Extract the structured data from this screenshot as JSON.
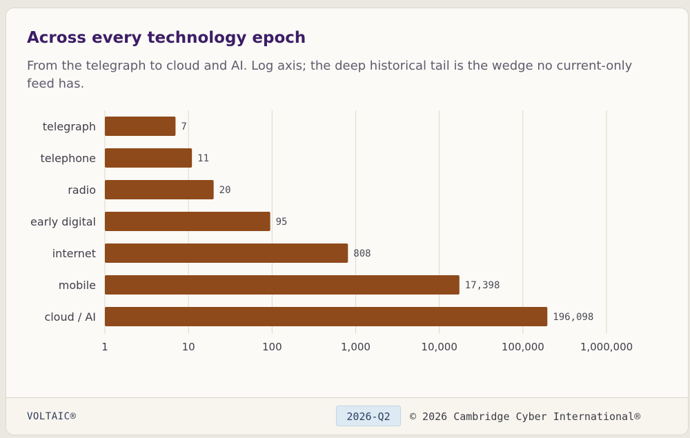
{
  "card": {
    "title": "Across every technology epoch",
    "subtitle": "From the telegraph to cloud and AI. Log axis; the deep historical tail is the wedge no current-only feed has."
  },
  "footer": {
    "brand": "VOLTAIC®",
    "period": "2026-Q2",
    "copyright": "© 2026 Cambridge Cyber International®"
  },
  "colors": {
    "bar": "#8e4a1a",
    "title": "#3c1d66",
    "grid": "#ddd9c8"
  },
  "chart_data": {
    "type": "bar",
    "orientation": "horizontal",
    "scale": "log",
    "categories": [
      "telegraph",
      "telephone",
      "radio",
      "early digital",
      "internet",
      "mobile",
      "cloud / AI"
    ],
    "values": [
      7,
      11,
      20,
      95,
      808,
      17398,
      196098
    ],
    "value_labels": [
      "7",
      "11",
      "20",
      "95",
      "808",
      "17,398",
      "196,098"
    ],
    "xlim": [
      1,
      1000000
    ],
    "xticks": [
      1,
      10,
      100,
      1000,
      10000,
      100000,
      1000000
    ],
    "xtick_labels": [
      "1",
      "10",
      "100",
      "1,000",
      "10,000",
      "100,000",
      "1,000,000"
    ],
    "grid": true
  }
}
